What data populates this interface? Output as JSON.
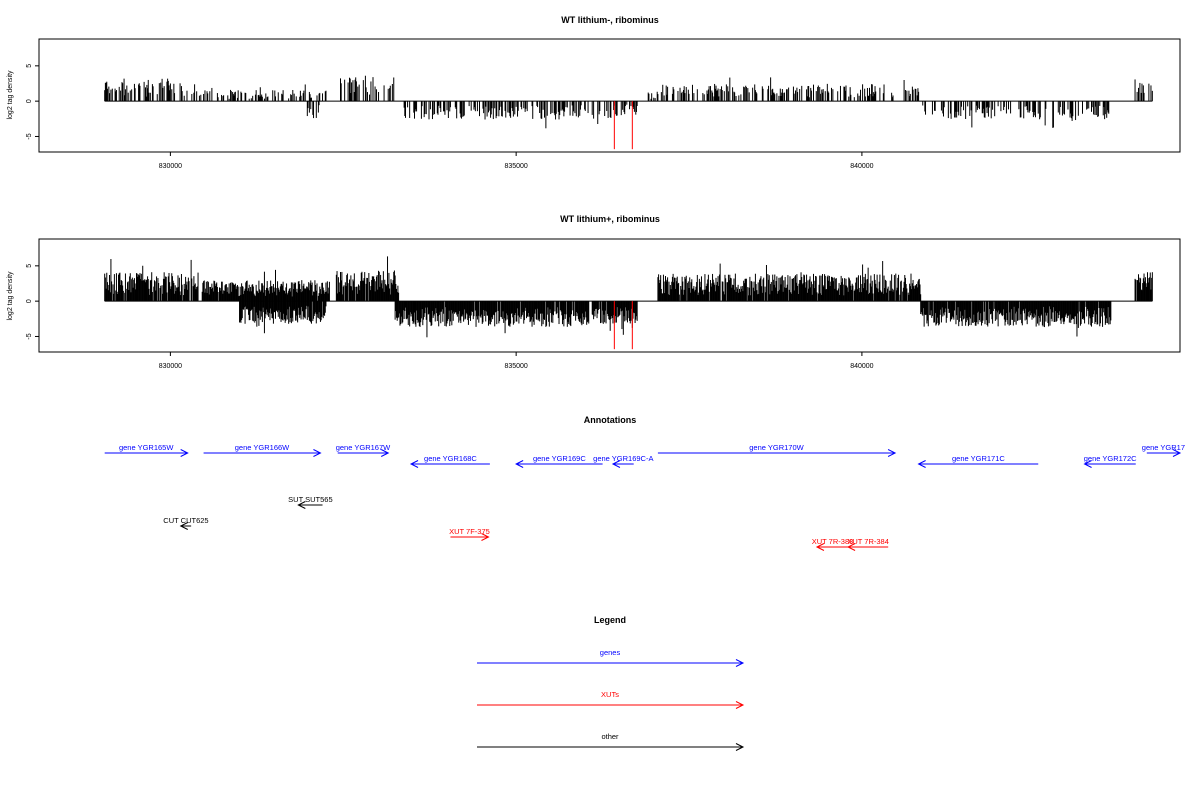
{
  "chart_data": [
    {
      "type": "bar",
      "title": "WT lithium-, ribominus",
      "ylabel": "log2 tag density",
      "xlabel": "",
      "xlim": [
        828100,
        844600
      ],
      "ylim": [
        -7.2,
        8.8
      ],
      "x_ticks": [
        830000,
        835000,
        840000
      ],
      "x_tick_labels": [
        "830000",
        "835000",
        "840000"
      ],
      "y_ticks": [
        -5,
        0,
        5
      ],
      "y_tick_labels": [
        "-5",
        "0",
        "5"
      ],
      "seed": 11,
      "density": 0.45,
      "amp_scale": 1.0,
      "segments": [
        {
          "start": 829050,
          "end": 830250,
          "sign": 1,
          "amp": 3.2
        },
        {
          "start": 830300,
          "end": 832250,
          "sign": 1,
          "amp": 1.6
        },
        {
          "start": 831950,
          "end": 832150,
          "sign": -1,
          "amp": 2.4
        },
        {
          "start": 832450,
          "end": 833250,
          "sign": 1,
          "amp": 3.6
        },
        {
          "start": 833350,
          "end": 836050,
          "sign": -1,
          "amp": 2.6
        },
        {
          "start": 836100,
          "end": 836750,
          "sign": -1,
          "amp": 2.4
        },
        {
          "start": 836900,
          "end": 837050,
          "sign": 1,
          "amp": 1.4
        },
        {
          "start": 837100,
          "end": 840850,
          "sign": 1,
          "amp": 2.5
        },
        {
          "start": 840850,
          "end": 843600,
          "sign": -1,
          "amp": 2.6
        },
        {
          "start": 843950,
          "end": 844200,
          "sign": 1,
          "amp": 3.2
        }
      ],
      "red_marks": [
        {
          "x": 836420,
          "y": -6.8
        },
        {
          "x": 836680,
          "y": -6.8
        }
      ],
      "colors": {
        "bars": "#000000",
        "marks": "#ff0000",
        "baseline": "#000000"
      }
    },
    {
      "type": "bar",
      "title": "WT lithium+, ribominus",
      "ylabel": "log2 tag density",
      "xlabel": "",
      "xlim": [
        828100,
        844600
      ],
      "ylim": [
        -7.2,
        8.8
      ],
      "x_ticks": [
        830000,
        835000,
        840000
      ],
      "x_tick_labels": [
        "830000",
        "835000",
        "840000"
      ],
      "y_ticks": [
        -5,
        0,
        5
      ],
      "y_tick_labels": [
        "-5",
        "0",
        "5"
      ],
      "seed": 29,
      "density": 0.95,
      "amp_scale": 1.15,
      "segments": [
        {
          "start": 829050,
          "end": 830400,
          "sign": 1,
          "amp": 3.6
        },
        {
          "start": 830450,
          "end": 832300,
          "sign": 1,
          "amp": 2.6
        },
        {
          "start": 831000,
          "end": 832250,
          "sign": -1,
          "amp": 2.8
        },
        {
          "start": 832400,
          "end": 833300,
          "sign": 1,
          "amp": 3.8
        },
        {
          "start": 833250,
          "end": 836050,
          "sign": -1,
          "amp": 3.2
        },
        {
          "start": 836100,
          "end": 836750,
          "sign": -1,
          "amp": 2.8
        },
        {
          "start": 837050,
          "end": 840850,
          "sign": 1,
          "amp": 3.4
        },
        {
          "start": 840850,
          "end": 843600,
          "sign": -1,
          "amp": 3.2
        },
        {
          "start": 843950,
          "end": 844200,
          "sign": 1,
          "amp": 3.6
        }
      ],
      "red_marks": [
        {
          "x": 836420,
          "y": -6.8
        },
        {
          "x": 836680,
          "y": -6.8
        }
      ],
      "colors": {
        "bars": "#000000",
        "marks": "#ff0000",
        "baseline": "#000000"
      }
    }
  ],
  "annotations": {
    "title": "Annotations",
    "xlim": [
      828100,
      844600
    ],
    "features": [
      {
        "label": "gene YGR165W",
        "start": 829050,
        "end": 830250,
        "strand": "+",
        "type": "gene",
        "row": 0
      },
      {
        "label": "gene YGR166W",
        "start": 830480,
        "end": 832170,
        "strand": "+",
        "type": "gene",
        "row": 0
      },
      {
        "label": "gene YGR167W",
        "start": 832420,
        "end": 833150,
        "strand": "+",
        "type": "gene",
        "row": 0
      },
      {
        "label": "gene YGR168C",
        "start": 833480,
        "end": 834620,
        "strand": "-",
        "type": "gene",
        "row": 1
      },
      {
        "label": "gene YGR169C",
        "start": 835000,
        "end": 836250,
        "strand": "-",
        "type": "gene",
        "row": 1
      },
      {
        "label": "gene YGR169C-A",
        "start": 836400,
        "end": 836700,
        "strand": "-",
        "type": "gene",
        "row": 1
      },
      {
        "label": "gene YGR170W",
        "start": 837050,
        "end": 840480,
        "strand": "+",
        "type": "gene",
        "row": 0
      },
      {
        "label": "gene YGR171C",
        "start": 840820,
        "end": 842550,
        "strand": "-",
        "type": "gene",
        "row": 1
      },
      {
        "label": "gene YGR172C",
        "start": 843220,
        "end": 843960,
        "strand": "-",
        "type": "gene",
        "row": 1
      },
      {
        "label": "gene YGR17",
        "start": 844120,
        "end": 844600,
        "strand": "+",
        "type": "gene",
        "row": 0
      },
      {
        "label": "SUT SUT565",
        "start": 831850,
        "end": 832200,
        "strand": "-",
        "type": "other",
        "row": 2
      },
      {
        "label": "CUT CUT625",
        "start": 830150,
        "end": 830300,
        "strand": "-",
        "type": "other",
        "row": 3
      },
      {
        "label": "XUT 7F-375",
        "start": 834050,
        "end": 834600,
        "strand": "+",
        "type": "xut",
        "row": 4
      },
      {
        "label": "XUT 7R-383",
        "start": 839350,
        "end": 839800,
        "strand": "-",
        "type": "xut",
        "row": 5
      },
      {
        "label": "XUT 7R-384",
        "start": 839800,
        "end": 840380,
        "strand": "-",
        "type": "xut",
        "row": 5
      }
    ],
    "colors": {
      "gene": "#0000ff",
      "xut": "#ff0000",
      "other": "#000000"
    }
  },
  "legend": {
    "title": "Legend",
    "items": [
      {
        "label": "genes",
        "color": "#0000ff"
      },
      {
        "label": "XUTs",
        "color": "#ff0000"
      },
      {
        "label": "other",
        "color": "#000000"
      }
    ]
  }
}
